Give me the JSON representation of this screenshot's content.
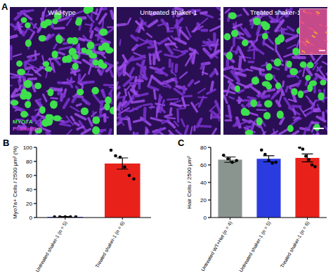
{
  "figure": {
    "panel_label": "A",
    "images": [
      {
        "label": "Wild-type"
      },
      {
        "label": "Untreated shaker-1"
      },
      {
        "label": "Treated shaker-1"
      }
    ],
    "stain_labels": [
      "MYO7A",
      "Phalloidin"
    ]
  },
  "chart_data": [
    {
      "type": "bar",
      "title": "B",
      "y_label": "Myo7a+ Cells / 2500 μm² (%)",
      "categories": [
        "Untreated shaker-1 (n = 5)",
        "Treated shaker-1 (n = 6)"
      ],
      "values": [
        1,
        77
      ],
      "errors": [
        0.5,
        8
      ],
      "points": [
        [
          1,
          1,
          1,
          1,
          1
        ],
        [
          96,
          88,
          86,
          72,
          60,
          55
        ]
      ],
      "colors": [
        "#2a3ce0",
        "#e8221b"
      ],
      "ylim": [
        0,
        100
      ],
      "yticks": [
        0,
        20,
        40,
        60,
        80,
        100
      ]
    },
    {
      "type": "bar",
      "title": "C",
      "y_label": "Hair Cells / 2500 μm²",
      "categories": [
        "Untreated WT+Het (n = 4)",
        "Untreated shaker-1 (n = 5)",
        "Treated shaker-1 (n = 6)"
      ],
      "values": [
        66,
        67,
        68
      ],
      "errors": [
        3,
        3.5,
        4.5
      ],
      "points": [
        [
          71,
          67,
          63,
          65
        ],
        [
          77,
          72,
          65,
          62,
          63
        ],
        [
          80,
          78,
          70,
          66,
          60,
          58
        ]
      ],
      "colors": [
        "#8a9590",
        "#2a3ce0",
        "#e8221b"
      ],
      "ylim": [
        0,
        80
      ],
      "yticks": [
        0,
        20,
        40,
        60,
        80
      ]
    }
  ]
}
